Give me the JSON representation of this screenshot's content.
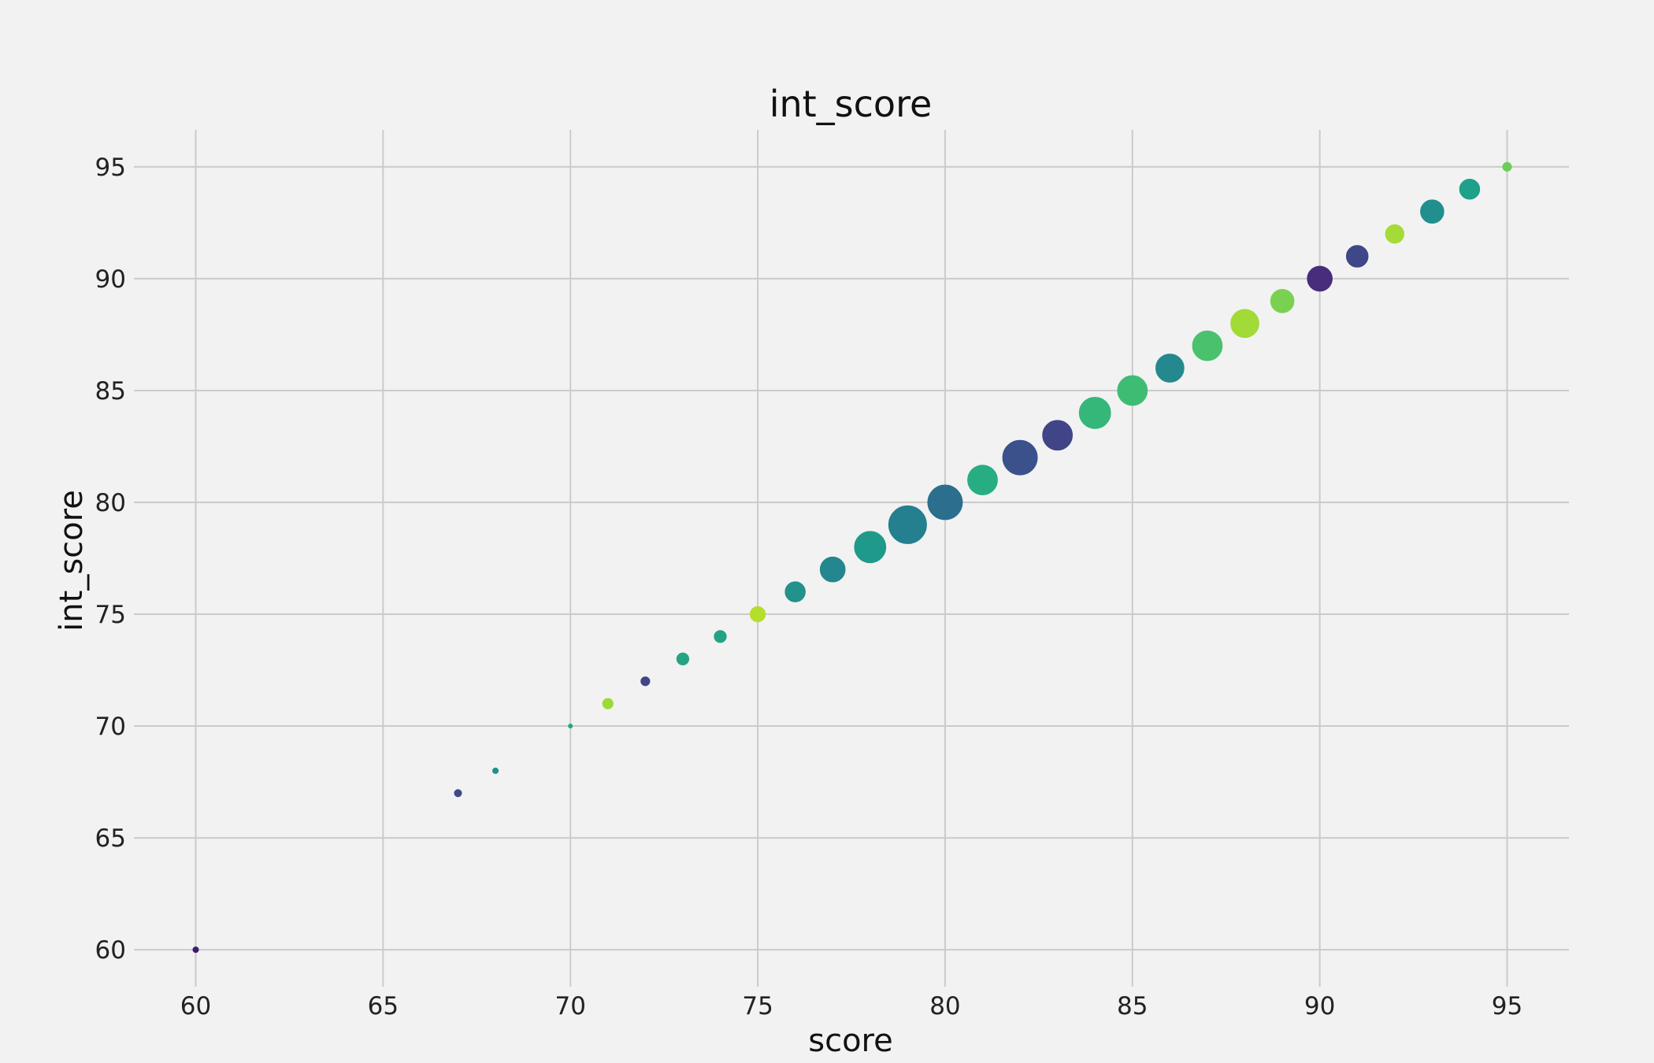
{
  "chart_data": {
    "type": "scatter",
    "title": "int_score",
    "xlabel": "score",
    "ylabel": "int_score",
    "xlim": [
      58.35,
      96.65
    ],
    "ylim": [
      58.35,
      96.65
    ],
    "xticks": [
      60,
      65,
      70,
      75,
      80,
      85,
      90,
      95
    ],
    "yticks": [
      60,
      65,
      70,
      75,
      80,
      85,
      90,
      95
    ],
    "grid": true,
    "legend": "none",
    "size_encoding": "relative marker size",
    "points": [
      {
        "x": 60,
        "y": 60,
        "size": 2,
        "color": "#3b1c6e"
      },
      {
        "x": 67,
        "y": 67,
        "size": 3,
        "color": "#3e4a89"
      },
      {
        "x": 68,
        "y": 68,
        "size": 2,
        "color": "#21908d"
      },
      {
        "x": 70,
        "y": 70,
        "size": 1,
        "color": "#22a884"
      },
      {
        "x": 71,
        "y": 71,
        "size": 5,
        "color": "#9fd938"
      },
      {
        "x": 72,
        "y": 72,
        "size": 4,
        "color": "#404688"
      },
      {
        "x": 73,
        "y": 73,
        "size": 6,
        "color": "#25a484"
      },
      {
        "x": 74,
        "y": 74,
        "size": 6,
        "color": "#22a385"
      },
      {
        "x": 75,
        "y": 75,
        "size": 8,
        "color": "#b5de2b"
      },
      {
        "x": 76,
        "y": 76,
        "size": 11,
        "color": "#23918c"
      },
      {
        "x": 77,
        "y": 77,
        "size": 14,
        "color": "#24868e"
      },
      {
        "x": 78,
        "y": 78,
        "size": 18,
        "color": "#1f9a8a"
      },
      {
        "x": 79,
        "y": 79,
        "size": 22,
        "color": "#24808e"
      },
      {
        "x": 80,
        "y": 80,
        "size": 20,
        "color": "#2c6e8e"
      },
      {
        "x": 81,
        "y": 81,
        "size": 17,
        "color": "#27ad81"
      },
      {
        "x": 82,
        "y": 82,
        "size": 20,
        "color": "#3b518b"
      },
      {
        "x": 83,
        "y": 83,
        "size": 17,
        "color": "#414487"
      },
      {
        "x": 84,
        "y": 84,
        "size": 18,
        "color": "#35b779"
      },
      {
        "x": 85,
        "y": 85,
        "size": 17,
        "color": "#3fbc73"
      },
      {
        "x": 86,
        "y": 86,
        "size": 16,
        "color": "#23898e"
      },
      {
        "x": 87,
        "y": 87,
        "size": 17,
        "color": "#4ac16d"
      },
      {
        "x": 88,
        "y": 88,
        "size": 16,
        "color": "#a2da37"
      },
      {
        "x": 89,
        "y": 89,
        "size": 13,
        "color": "#7ad151"
      },
      {
        "x": 90,
        "y": 90,
        "size": 14,
        "color": "#472d7b"
      },
      {
        "x": 91,
        "y": 91,
        "size": 12,
        "color": "#3f4788"
      },
      {
        "x": 92,
        "y": 92,
        "size": 10,
        "color": "#a5db36"
      },
      {
        "x": 93,
        "y": 93,
        "size": 13,
        "color": "#218f8d"
      },
      {
        "x": 94,
        "y": 94,
        "size": 11,
        "color": "#1fa088"
      },
      {
        "x": 95,
        "y": 95,
        "size": 4,
        "color": "#6ccd5a"
      }
    ]
  }
}
